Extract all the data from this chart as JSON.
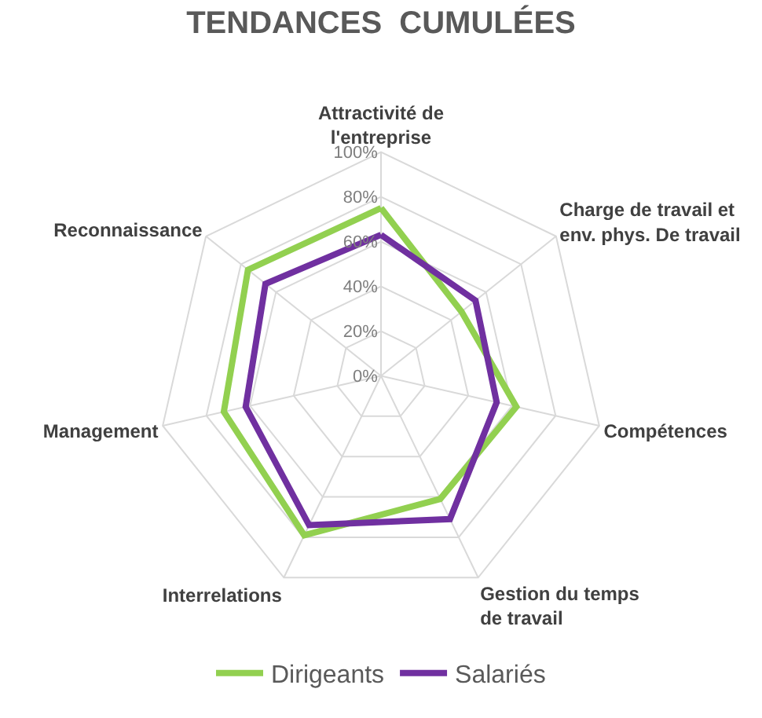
{
  "chart_data": {
    "type": "radar",
    "title": "TENDANCES  CUMULÉES",
    "categories": [
      "Attractivité de\nl'entreprise",
      "Charge de travail et\nenv. phys. De travail",
      "Compétences",
      "Gestion du temps\nde travail",
      "Interrelations",
      "Management",
      "Reconnaissance"
    ],
    "series": [
      {
        "name": "Dirigeants",
        "color": "#92d050",
        "values": [
          75,
          46,
          62,
          61,
          79,
          72,
          76
        ]
      },
      {
        "name": "Salariés",
        "color": "#7030a0",
        "values": [
          63,
          54,
          53,
          71,
          74,
          62,
          66
        ]
      }
    ],
    "ylim": [
      0,
      100
    ],
    "yticks": [
      {
        "value": 0,
        "label": "0%"
      },
      {
        "value": 20,
        "label": "20%"
      },
      {
        "value": 40,
        "label": "40%"
      },
      {
        "value": 60,
        "label": "60%"
      },
      {
        "value": 80,
        "label": "80%"
      },
      {
        "value": 100,
        "label": "100%"
      }
    ],
    "grid": true,
    "legend": "bottom",
    "marker": "none",
    "line_style": "solid"
  }
}
